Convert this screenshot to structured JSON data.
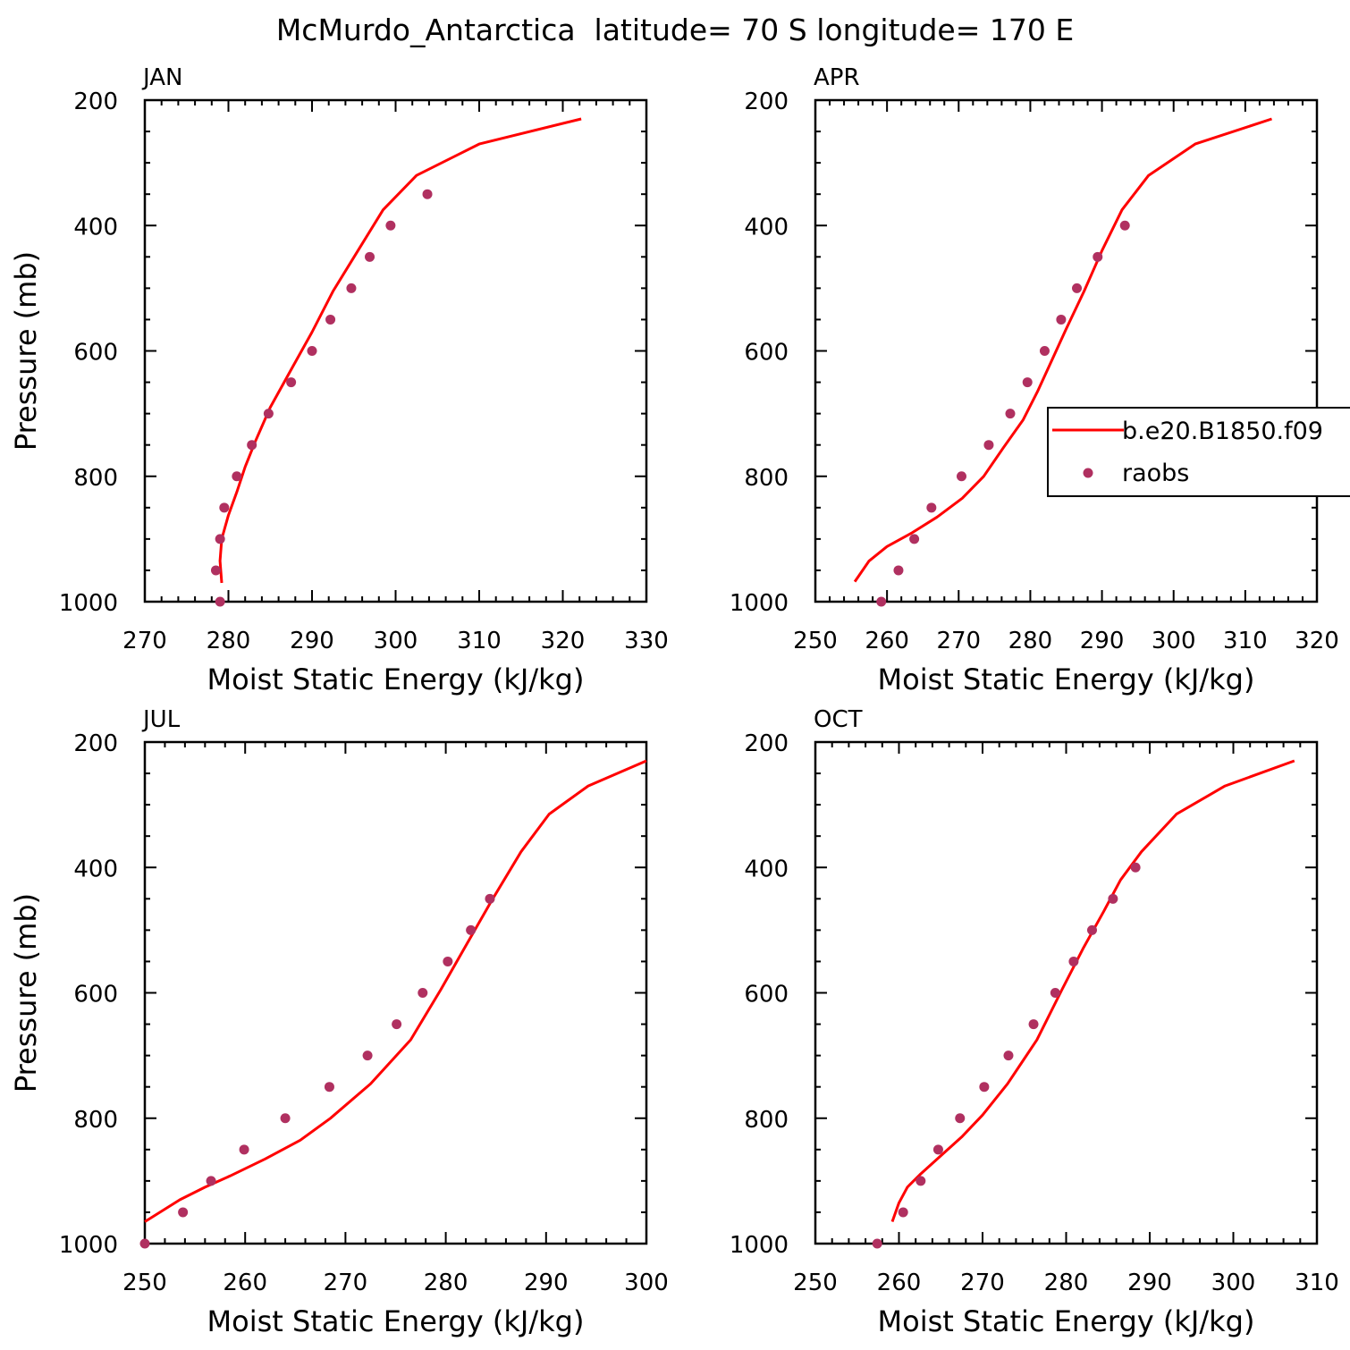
{
  "figure": {
    "title": "McMurdo_Antarctica  latitude= 70 S longitude= 170 E",
    "legend": {
      "placement": "right-middle",
      "entries": [
        {
          "label": "b.e20.B1850.f09",
          "style": "line",
          "color": "#ff0000"
        },
        {
          "label": "raobs",
          "style": "marker",
          "color": "#b03060"
        }
      ]
    },
    "colors": {
      "model": "#ff0000",
      "obs": "#b03060",
      "axis": "#000000"
    }
  },
  "chart_data": [
    {
      "type": "line",
      "panel_label": "JAN",
      "xlabel": "Moist Static Energy (kJ/kg)",
      "ylabel": "Pressure (mb)",
      "xlim": [
        270,
        330
      ],
      "ylim": [
        1000,
        200
      ],
      "y_inverted": true,
      "x_ticks": [
        "270",
        "280",
        "290",
        "300",
        "310",
        "320",
        "330"
      ],
      "y_ticks": [
        "200",
        "400",
        "600",
        "800",
        "1000"
      ],
      "show_ylabel": true,
      "series": [
        {
          "name": "b.e20.B1850.f09",
          "kind": "line",
          "x": [
            279.2,
            279.0,
            279.2,
            280.0,
            281.0,
            282.0,
            283.2,
            285.0,
            287.5,
            290.0,
            292.5,
            295.5,
            298.5,
            302.5,
            310.0,
            322.2
          ],
          "y": [
            970,
            935,
            900,
            862,
            825,
            785,
            745,
            690,
            630,
            570,
            505,
            440,
            375,
            320,
            270,
            230
          ]
        },
        {
          "name": "raobs",
          "kind": "scatter",
          "x": [
            279.0,
            278.5,
            279.0,
            279.5,
            281.0,
            282.8,
            284.8,
            287.5,
            290.0,
            292.2,
            294.7,
            296.9,
            299.4,
            303.8
          ],
          "y": [
            1000,
            950,
            900,
            850,
            800,
            750,
            700,
            650,
            600,
            550,
            500,
            450,
            400,
            350
          ]
        }
      ]
    },
    {
      "type": "line",
      "panel_label": "APR",
      "xlabel": "Moist Static Energy (kJ/kg)",
      "ylabel": "",
      "xlim": [
        250,
        320
      ],
      "ylim": [
        1000,
        200
      ],
      "y_inverted": true,
      "x_ticks": [
        "250",
        "260",
        "270",
        "280",
        "290",
        "300",
        "310",
        "320"
      ],
      "y_ticks": [
        "200",
        "400",
        "600",
        "800",
        "1000"
      ],
      "show_ylabel": false,
      "series": [
        {
          "name": "b.e20.B1850.f09",
          "kind": "line",
          "x": [
            255.5,
            257.5,
            260.0,
            263.5,
            267.0,
            270.5,
            273.5,
            276.2,
            279.0,
            281.0,
            283.0,
            285.0,
            287.5,
            290.0,
            292.8,
            296.5,
            303.0,
            313.7
          ],
          "y": [
            968,
            935,
            912,
            890,
            865,
            835,
            800,
            755,
            710,
            665,
            615,
            565,
            505,
            440,
            375,
            320,
            270,
            230
          ]
        },
        {
          "name": "raobs",
          "kind": "scatter",
          "x": [
            259.2,
            261.6,
            263.8,
            266.2,
            270.4,
            274.2,
            277.2,
            279.6,
            282.0,
            284.3,
            286.5,
            289.4,
            293.2
          ],
          "y": [
            1000,
            950,
            900,
            850,
            800,
            750,
            700,
            650,
            600,
            550,
            500,
            450,
            400
          ]
        }
      ]
    },
    {
      "type": "line",
      "panel_label": "JUL",
      "xlabel": "Moist Static Energy (kJ/kg)",
      "ylabel": "Pressure (mb)",
      "xlim": [
        250,
        300
      ],
      "ylim": [
        1000,
        200
      ],
      "y_inverted": true,
      "x_ticks": [
        "250",
        "260",
        "270",
        "280",
        "290",
        "300"
      ],
      "y_ticks": [
        "200",
        "400",
        "600",
        "800",
        "1000"
      ],
      "show_ylabel": true,
      "series": [
        {
          "name": "b.e20.B1850.f09",
          "kind": "line",
          "x": [
            250.0,
            253.5,
            256.0,
            258.5,
            262.0,
            265.5,
            268.5,
            272.5,
            276.5,
            279.5,
            282.0,
            284.5,
            287.5,
            290.3,
            294.2,
            300.0
          ],
          "y": [
            965,
            930,
            910,
            892,
            865,
            835,
            800,
            745,
            675,
            595,
            525,
            455,
            375,
            315,
            270,
            230
          ]
        },
        {
          "name": "raobs",
          "kind": "scatter",
          "x": [
            250.0,
            253.8,
            256.6,
            259.9,
            264.0,
            268.4,
            272.2,
            275.1,
            277.7,
            280.2,
            282.5,
            284.4
          ],
          "y": [
            1000,
            950,
            900,
            850,
            800,
            750,
            700,
            650,
            600,
            550,
            500,
            450
          ]
        }
      ]
    },
    {
      "type": "line",
      "panel_label": "OCT",
      "xlabel": "Moist Static Energy (kJ/kg)",
      "ylabel": "",
      "xlim": [
        250,
        310
      ],
      "ylim": [
        1000,
        200
      ],
      "y_inverted": true,
      "x_ticks": [
        "250",
        "260",
        "270",
        "280",
        "290",
        "300",
        "310"
      ],
      "y_ticks": [
        "200",
        "400",
        "600",
        "800",
        "1000"
      ],
      "show_ylabel": false,
      "series": [
        {
          "name": "b.e20.B1850.f09",
          "kind": "line",
          "x": [
            259.2,
            260.0,
            261.0,
            262.5,
            265.0,
            267.5,
            270.0,
            273.0,
            276.5,
            279.5,
            282.0,
            284.5,
            286.5,
            289.0,
            293.2,
            299.0,
            307.3
          ],
          "y": [
            965,
            935,
            910,
            890,
            860,
            830,
            795,
            745,
            675,
            595,
            530,
            470,
            420,
            375,
            315,
            270,
            230
          ]
        },
        {
          "name": "raobs",
          "kind": "scatter",
          "x": [
            257.4,
            260.5,
            262.6,
            264.7,
            267.3,
            270.2,
            273.1,
            276.1,
            278.7,
            280.9,
            283.1,
            285.6,
            288.3
          ],
          "y": [
            1000,
            950,
            900,
            850,
            800,
            750,
            700,
            650,
            600,
            550,
            500,
            450,
            400
          ]
        }
      ]
    }
  ]
}
